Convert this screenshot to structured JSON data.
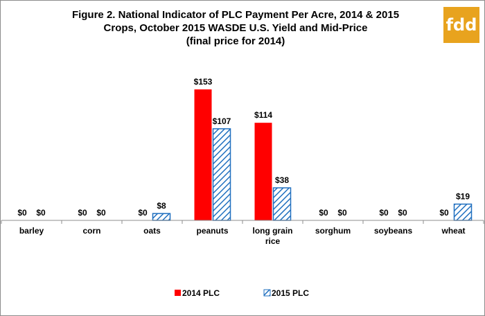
{
  "title_lines": [
    "Figure 2.  National Indicator of PLC Payment Per Acre, 2014 & 2015",
    "Crops,  October 2015 WASDE U.S. Yield and Mid-Price",
    "(final price for 2014)"
  ],
  "logo_text": "fdd",
  "colors": {
    "series_2014": "#ff0000",
    "series_2015": "#1f6fbf",
    "logo_bg": "#e8a31e"
  },
  "chart_data": {
    "type": "bar",
    "title": "Figure 2.  National Indicator of PLC Payment Per Acre, 2014 & 2015 Crops,  October 2015 WASDE U.S. Yield and Mid-Price (final price for 2014)",
    "categories": [
      "barley",
      "corn",
      "oats",
      "peanuts",
      "long grain rice",
      "sorghum",
      "soybeans",
      "wheat"
    ],
    "series": [
      {
        "name": "2014 PLC",
        "values": [
          0,
          0,
          0,
          153,
          114,
          0,
          0,
          0
        ],
        "labels": [
          "$0",
          "$0",
          "$0",
          "$153",
          "$114",
          "$0",
          "$0",
          "$0"
        ],
        "fill": "solid"
      },
      {
        "name": "2015 PLC",
        "values": [
          0,
          0,
          8,
          107,
          38,
          0,
          0,
          19
        ],
        "labels": [
          "$0",
          "$0",
          "$8",
          "$107",
          "$38",
          "$0",
          "$0",
          "$19"
        ],
        "fill": "hatched"
      }
    ],
    "xlabel": "",
    "ylabel": "",
    "ylim": [
      0,
      160
    ],
    "grid": false,
    "legend_position": "bottom"
  }
}
